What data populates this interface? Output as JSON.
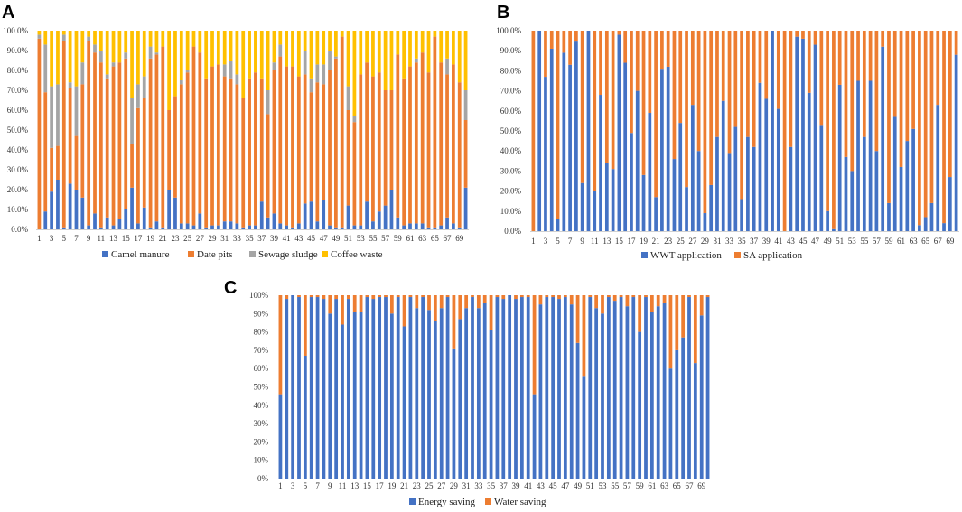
{
  "figure": {
    "panels": [
      "A",
      "B",
      "C"
    ]
  },
  "chart_data": [
    {
      "panel": "A",
      "type": "bar",
      "stacked": true,
      "x_categories": [
        1,
        2,
        3,
        4,
        5,
        6,
        7,
        8,
        9,
        10,
        11,
        12,
        13,
        14,
        15,
        16,
        17,
        18,
        19,
        20,
        21,
        22,
        23,
        24,
        25,
        26,
        27,
        28,
        29,
        30,
        31,
        32,
        33,
        34,
        35,
        36,
        37,
        38,
        39,
        40,
        41,
        42,
        43,
        44,
        45,
        46,
        47,
        48,
        49,
        50,
        51,
        52,
        53,
        54,
        55,
        56,
        57,
        58,
        59,
        60,
        61,
        62,
        63,
        64,
        65,
        66,
        67,
        68,
        69,
        70
      ],
      "x_tick_labels": [
        "1",
        "3",
        "5",
        "7",
        "9",
        "11",
        "13",
        "15",
        "17",
        "19",
        "21",
        "23",
        "25",
        "27",
        "29",
        "31",
        "33",
        "35",
        "37",
        "39",
        "41",
        "43",
        "45",
        "47",
        "49",
        "51",
        "53",
        "55",
        "57",
        "59",
        "61",
        "63",
        "65",
        "67",
        "69"
      ],
      "y_ticks": [
        "0.0%",
        "10.0%",
        "20.0%",
        "30.0%",
        "40.0%",
        "50.0%",
        "60.0%",
        "70.0%",
        "80.0%",
        "90.0%",
        "100.0%"
      ],
      "ylim": [
        0,
        100
      ],
      "legend_position": "bottom",
      "series": [
        {
          "name": "Camel manure",
          "color": "#4472C4",
          "values": [
            0,
            9,
            19,
            25,
            1,
            23,
            20,
            16,
            2,
            8,
            1,
            6,
            2,
            5,
            10,
            21,
            3,
            11,
            1,
            4,
            1,
            20,
            16,
            3,
            3,
            2,
            8,
            1,
            2,
            2,
            4,
            4,
            3,
            1,
            2,
            2,
            14,
            6,
            8,
            3,
            2,
            1,
            3,
            13,
            14,
            4,
            15,
            2,
            1,
            1,
            12,
            2,
            2,
            14,
            4,
            9,
            12,
            20,
            6,
            2,
            3,
            3,
            3,
            1,
            1,
            2,
            6,
            3,
            1,
            21
          ]
        },
        {
          "name": "Date pits",
          "color": "#ED7D31",
          "values": [
            96,
            60,
            22,
            17,
            94,
            48,
            27,
            57,
            93,
            81,
            83,
            70,
            80,
            79,
            76,
            22,
            58,
            55,
            85,
            84,
            91,
            40,
            51,
            70,
            76,
            90,
            81,
            75,
            80,
            81,
            73,
            72,
            70,
            65,
            74,
            77,
            62,
            52,
            72,
            84,
            80,
            81,
            74,
            65,
            55,
            70,
            58,
            78,
            85,
            96,
            48,
            52,
            76,
            70,
            73,
            70,
            58,
            50,
            82,
            74,
            79,
            81,
            86,
            78,
            96,
            82,
            72,
            80,
            73,
            34
          ]
        },
        {
          "name": "Sewage sludge",
          "color": "#A5A5A5",
          "values": [
            2,
            24,
            31,
            31,
            3,
            3,
            25,
            11,
            2,
            4,
            6,
            2,
            2,
            0,
            3,
            23,
            12,
            11,
            6,
            1,
            0,
            0,
            0,
            2,
            1,
            0,
            0,
            0,
            0,
            0,
            6,
            9,
            5,
            0,
            0,
            0,
            0,
            12,
            4,
            6,
            0,
            0,
            0,
            12,
            7,
            9,
            10,
            10,
            1,
            0,
            12,
            3,
            0,
            0,
            0,
            0,
            0,
            0,
            0,
            0,
            0,
            2,
            0,
            0,
            0,
            0,
            8,
            0,
            0,
            15
          ]
        },
        {
          "name": "Coffee waste",
          "color": "#FFC000",
          "values": [
            2,
            7,
            28,
            27,
            2,
            26,
            28,
            16,
            3,
            7,
            10,
            22,
            16,
            16,
            11,
            34,
            27,
            23,
            8,
            11,
            8,
            40,
            33,
            25,
            20,
            8,
            11,
            24,
            18,
            17,
            17,
            15,
            22,
            34,
            24,
            21,
            24,
            30,
            16,
            7,
            18,
            18,
            23,
            10,
            24,
            17,
            17,
            10,
            13,
            3,
            28,
            43,
            22,
            16,
            23,
            21,
            30,
            30,
            12,
            24,
            18,
            14,
            11,
            21,
            3,
            16,
            14,
            17,
            26,
            30
          ]
        }
      ]
    },
    {
      "panel": "B",
      "type": "bar",
      "stacked": true,
      "x_categories": [
        1,
        2,
        3,
        4,
        5,
        6,
        7,
        8,
        9,
        10,
        11,
        12,
        13,
        14,
        15,
        16,
        17,
        18,
        19,
        20,
        21,
        22,
        23,
        24,
        25,
        26,
        27,
        28,
        29,
        30,
        31,
        32,
        33,
        34,
        35,
        36,
        37,
        38,
        39,
        40,
        41,
        42,
        43,
        44,
        45,
        46,
        47,
        48,
        49,
        50,
        51,
        52,
        53,
        54,
        55,
        56,
        57,
        58,
        59,
        60,
        61,
        62,
        63,
        64,
        65,
        66,
        67,
        68,
        69,
        70
      ],
      "x_tick_labels": [
        "1",
        "3",
        "5",
        "7",
        "9",
        "11",
        "13",
        "15",
        "17",
        "19",
        "21",
        "23",
        "25",
        "27",
        "29",
        "31",
        "33",
        "35",
        "37",
        "39",
        "41",
        "43",
        "45",
        "47",
        "49",
        "51",
        "53",
        "55",
        "57",
        "59",
        "61",
        "63",
        "65",
        "67",
        "69"
      ],
      "y_ticks": [
        "0.0%",
        "10.0%",
        "20.0%",
        "30.0%",
        "40.0%",
        "50.0%",
        "60.0%",
        "70.0%",
        "80.0%",
        "90.0%",
        "100.0%"
      ],
      "ylim": [
        0,
        100
      ],
      "legend_position": "bottom",
      "series": [
        {
          "name": "WWT application",
          "color": "#4472C4",
          "values": [
            0,
            100,
            77,
            91,
            6,
            89,
            83,
            95,
            24,
            100,
            20,
            68,
            34,
            31,
            98,
            84,
            49,
            70,
            28,
            59,
            17,
            81,
            82,
            36,
            54,
            22,
            63,
            40,
            9,
            23,
            47,
            65,
            39,
            52,
            16,
            47,
            42,
            74,
            66,
            100,
            61,
            0,
            42,
            97,
            96,
            69,
            93,
            53,
            10,
            1,
            73,
            37,
            30,
            75,
            47,
            75,
            40,
            92,
            14,
            57,
            32,
            45,
            51,
            3,
            7,
            14,
            63,
            4,
            27,
            88
          ]
        },
        {
          "name": "SA application",
          "color": "#ED7D31",
          "values": [
            100,
            0,
            23,
            9,
            94,
            11,
            17,
            5,
            76,
            0,
            80,
            32,
            66,
            69,
            2,
            16,
            51,
            30,
            72,
            41,
            83,
            19,
            18,
            64,
            46,
            78,
            37,
            60,
            91,
            77,
            53,
            35,
            61,
            48,
            84,
            53,
            58,
            26,
            34,
            0,
            39,
            100,
            58,
            3,
            4,
            31,
            7,
            47,
            90,
            99,
            27,
            63,
            70,
            25,
            53,
            25,
            60,
            8,
            86,
            43,
            68,
            55,
            49,
            97,
            93,
            86,
            37,
            96,
            73,
            12
          ]
        }
      ]
    },
    {
      "panel": "C",
      "type": "bar",
      "stacked": true,
      "x_categories": [
        1,
        2,
        3,
        4,
        5,
        6,
        7,
        8,
        9,
        10,
        11,
        12,
        13,
        14,
        15,
        16,
        17,
        18,
        19,
        20,
        21,
        22,
        23,
        24,
        25,
        26,
        27,
        28,
        29,
        30,
        31,
        32,
        33,
        34,
        35,
        36,
        37,
        38,
        39,
        40,
        41,
        42,
        43,
        44,
        45,
        46,
        47,
        48,
        49,
        50,
        51,
        52,
        53,
        54,
        55,
        56,
        57,
        58,
        59,
        60,
        61,
        62,
        63,
        64,
        65,
        66,
        67,
        68,
        69,
        70
      ],
      "x_tick_labels": [
        "1",
        "3",
        "5",
        "7",
        "9",
        "11",
        "13",
        "15",
        "17",
        "19",
        "21",
        "23",
        "25",
        "27",
        "29",
        "31",
        "33",
        "35",
        "37",
        "39",
        "41",
        "43",
        "45",
        "47",
        "49",
        "51",
        "53",
        "55",
        "57",
        "59",
        "61",
        "63",
        "65",
        "67",
        "69"
      ],
      "y_ticks": [
        "0%",
        "10%",
        "20%",
        "30%",
        "40%",
        "50%",
        "60%",
        "70%",
        "80%",
        "90%",
        "100%"
      ],
      "ylim": [
        0,
        100
      ],
      "legend_position": "bottom",
      "series": [
        {
          "name": "Energy saving",
          "color": "#4472C4",
          "values": [
            46,
            98,
            100,
            99,
            67,
            99,
            99,
            98,
            90,
            98,
            84,
            98,
            91,
            91,
            99,
            98,
            99,
            99,
            90,
            99,
            83,
            99,
            93,
            99,
            92,
            86,
            93,
            99,
            71,
            87,
            93,
            99,
            93,
            96,
            81,
            99,
            98,
            100,
            98,
            99,
            99,
            46,
            95,
            99,
            99,
            98,
            99,
            95,
            74,
            56,
            99,
            93,
            90,
            99,
            97,
            99,
            94,
            99,
            80,
            99,
            91,
            94,
            96,
            60,
            70,
            77,
            99,
            63,
            89,
            99
          ]
        },
        {
          "name": "Water saving",
          "color": "#ED7D31",
          "values": [
            54,
            2,
            0,
            1,
            33,
            1,
            1,
            2,
            10,
            2,
            16,
            2,
            9,
            9,
            1,
            2,
            1,
            1,
            10,
            1,
            17,
            1,
            7,
            1,
            8,
            14,
            7,
            1,
            29,
            13,
            7,
            1,
            7,
            4,
            19,
            1,
            2,
            0,
            2,
            1,
            1,
            54,
            5,
            1,
            1,
            2,
            1,
            5,
            26,
            44,
            1,
            7,
            10,
            1,
            3,
            1,
            6,
            1,
            20,
            1,
            9,
            6,
            4,
            40,
            30,
            23,
            1,
            37,
            11,
            1
          ]
        }
      ]
    }
  ]
}
